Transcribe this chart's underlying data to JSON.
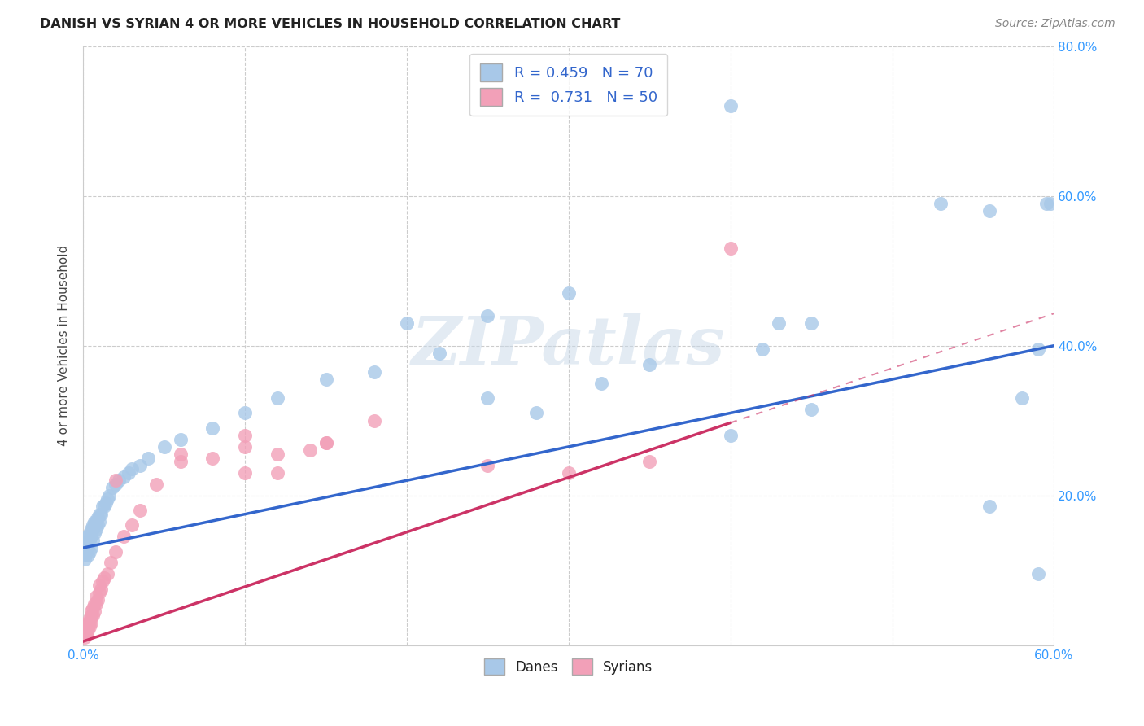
{
  "title": "DANISH VS SYRIAN 4 OR MORE VEHICLES IN HOUSEHOLD CORRELATION CHART",
  "source": "Source: ZipAtlas.com",
  "ylabel": "4 or more Vehicles in Household",
  "xlim": [
    0.0,
    0.6
  ],
  "ylim": [
    0.0,
    0.8
  ],
  "xticks": [
    0.0,
    0.1,
    0.2,
    0.3,
    0.4,
    0.5,
    0.6
  ],
  "yticks": [
    0.0,
    0.2,
    0.4,
    0.6,
    0.8
  ],
  "xtick_labels": [
    "0.0%",
    "",
    "",
    "",
    "",
    "",
    "60.0%"
  ],
  "ytick_labels": [
    "",
    "20.0%",
    "40.0%",
    "60.0%",
    "80.0%"
  ],
  "danes_color": "#a8c8e8",
  "syrians_color": "#f2a0b8",
  "danes_line_color": "#3366cc",
  "syrians_line_color": "#cc3366",
  "danes_R": 0.459,
  "danes_N": 70,
  "syrians_R": 0.731,
  "syrians_N": 50,
  "background_color": "#ffffff",
  "grid_color": "#cccccc",
  "watermark": "ZIPatlas",
  "danes_intercept": 0.13,
  "danes_slope": 0.45,
  "syrians_intercept": 0.005,
  "syrians_slope": 0.73,
  "danes_x": [
    0.001,
    0.001,
    0.002,
    0.002,
    0.002,
    0.003,
    0.003,
    0.003,
    0.003,
    0.004,
    0.004,
    0.004,
    0.005,
    0.005,
    0.005,
    0.006,
    0.006,
    0.006,
    0.007,
    0.007,
    0.007,
    0.008,
    0.008,
    0.009,
    0.009,
    0.01,
    0.01,
    0.011,
    0.012,
    0.013,
    0.014,
    0.015,
    0.016,
    0.018,
    0.02,
    0.022,
    0.025,
    0.028,
    0.03,
    0.035,
    0.04,
    0.05,
    0.06,
    0.08,
    0.1,
    0.12,
    0.15,
    0.18,
    0.22,
    0.25,
    0.28,
    0.32,
    0.35,
    0.4,
    0.43,
    0.2,
    0.25,
    0.3,
    0.42,
    0.45,
    0.53,
    0.56,
    0.59,
    0.595,
    0.598,
    0.4,
    0.45,
    0.56,
    0.58,
    0.59
  ],
  "danes_y": [
    0.115,
    0.12,
    0.125,
    0.13,
    0.135,
    0.12,
    0.13,
    0.14,
    0.145,
    0.125,
    0.14,
    0.15,
    0.13,
    0.145,
    0.155,
    0.14,
    0.155,
    0.16,
    0.15,
    0.16,
    0.165,
    0.155,
    0.165,
    0.16,
    0.17,
    0.165,
    0.175,
    0.175,
    0.185,
    0.185,
    0.19,
    0.195,
    0.2,
    0.21,
    0.215,
    0.22,
    0.225,
    0.23,
    0.235,
    0.24,
    0.25,
    0.265,
    0.275,
    0.29,
    0.31,
    0.33,
    0.355,
    0.365,
    0.39,
    0.33,
    0.31,
    0.35,
    0.375,
    0.28,
    0.43,
    0.43,
    0.44,
    0.47,
    0.395,
    0.43,
    0.59,
    0.185,
    0.095,
    0.59,
    0.59,
    0.72,
    0.315,
    0.58,
    0.33,
    0.395
  ],
  "syrians_x": [
    0.001,
    0.001,
    0.002,
    0.002,
    0.002,
    0.003,
    0.003,
    0.003,
    0.004,
    0.004,
    0.004,
    0.005,
    0.005,
    0.005,
    0.006,
    0.006,
    0.007,
    0.007,
    0.008,
    0.008,
    0.009,
    0.01,
    0.01,
    0.011,
    0.012,
    0.013,
    0.015,
    0.017,
    0.02,
    0.025,
    0.03,
    0.035,
    0.045,
    0.06,
    0.08,
    0.1,
    0.12,
    0.15,
    0.18,
    0.02,
    0.06,
    0.1,
    0.1,
    0.14,
    0.3,
    0.12,
    0.15,
    0.25,
    0.35,
    0.4
  ],
  "syrians_y": [
    0.01,
    0.015,
    0.015,
    0.02,
    0.025,
    0.02,
    0.025,
    0.03,
    0.025,
    0.03,
    0.035,
    0.03,
    0.04,
    0.045,
    0.04,
    0.05,
    0.045,
    0.055,
    0.055,
    0.065,
    0.06,
    0.07,
    0.08,
    0.075,
    0.085,
    0.09,
    0.095,
    0.11,
    0.125,
    0.145,
    0.16,
    0.18,
    0.215,
    0.255,
    0.25,
    0.28,
    0.23,
    0.27,
    0.3,
    0.22,
    0.245,
    0.23,
    0.265,
    0.26,
    0.23,
    0.255,
    0.27,
    0.24,
    0.245,
    0.53
  ]
}
